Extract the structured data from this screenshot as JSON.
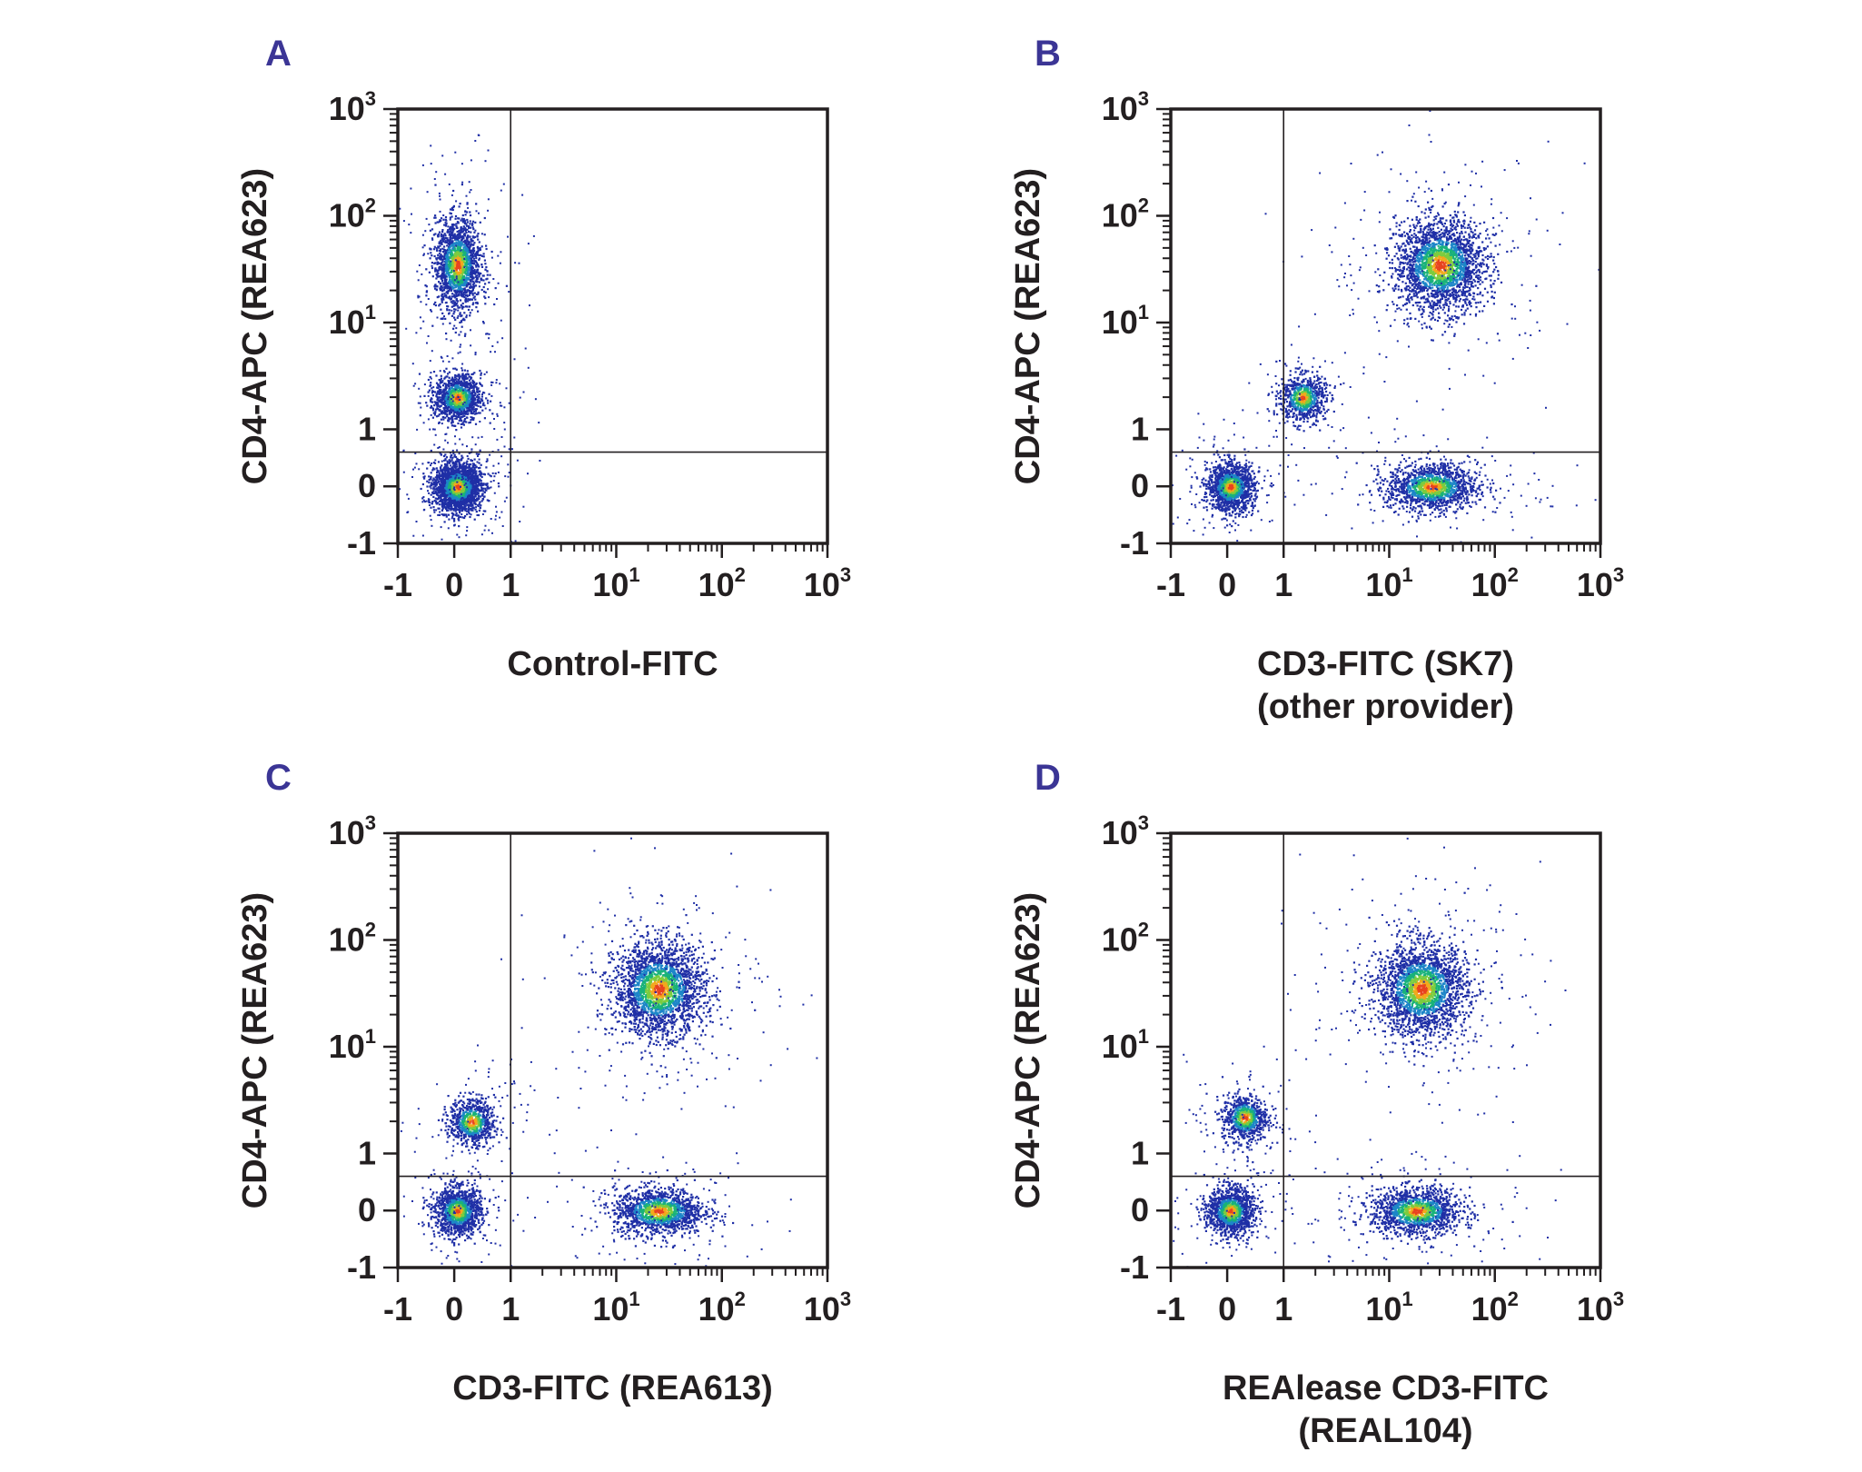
{
  "figure": {
    "background": "#ffffff",
    "panel_letter_color": "#3b3595",
    "point_color": "#1f2fa6",
    "density_colors": [
      "#1f2fa6",
      "#1d86c8",
      "#19b27a",
      "#7ccc3f",
      "#f2a81d",
      "#e8431f"
    ]
  },
  "chart_data": [
    {
      "type": "scatter",
      "panel": "A",
      "xlabel": [
        "Control-FITC"
      ],
      "ylabel": "CD4-APC (REA623)",
      "x_ticks": [
        {
          "base": "-1"
        },
        {
          "base": "0"
        },
        {
          "base": "1"
        },
        {
          "base": "10",
          "sup": "1"
        },
        {
          "base": "10",
          "sup": "2"
        },
        {
          "base": "10",
          "sup": "3"
        }
      ],
      "y_ticks": [
        {
          "base": "-1"
        },
        {
          "base": "0"
        },
        {
          "base": "1"
        },
        {
          "base": "10",
          "sup": "1"
        },
        {
          "base": "10",
          "sup": "2"
        },
        {
          "base": "10",
          "sup": "3"
        }
      ],
      "scale": "biexponential",
      "xlim": [
        -1,
        1000
      ],
      "ylim": [
        -1,
        1000
      ],
      "gate": {
        "x": 1,
        "y": 0.6
      },
      "populations": [
        {
          "x": 0.05,
          "y": 0.0,
          "count": 2200
        },
        {
          "x": 0.05,
          "y": 2,
          "count": 1100
        },
        {
          "x": 0.05,
          "y": 35,
          "count": 1600
        }
      ]
    },
    {
      "type": "scatter",
      "panel": "B",
      "xlabel": [
        "CD3-FITC (SK7)",
        "(other provider)"
      ],
      "ylabel": "CD4-APC (REA623)",
      "x_ticks": [
        {
          "base": "-1"
        },
        {
          "base": "0"
        },
        {
          "base": "1"
        },
        {
          "base": "10",
          "sup": "1"
        },
        {
          "base": "10",
          "sup": "2"
        },
        {
          "base": "10",
          "sup": "3"
        }
      ],
      "y_ticks": [
        {
          "base": "-1"
        },
        {
          "base": "0"
        },
        {
          "base": "1"
        },
        {
          "base": "10",
          "sup": "1"
        },
        {
          "base": "10",
          "sup": "2"
        },
        {
          "base": "10",
          "sup": "3"
        }
      ],
      "scale": "biexponential",
      "xlim": [
        -1,
        1000
      ],
      "ylim": [
        -1,
        1000
      ],
      "gate": {
        "x": 1,
        "y": 0.6
      },
      "populations": [
        {
          "x": 0.05,
          "y": 0.0,
          "count": 1300
        },
        {
          "x": 1.5,
          "y": 2,
          "count": 700
        },
        {
          "x": 25,
          "y": 0.0,
          "count": 1300
        },
        {
          "x": 30,
          "y": 35,
          "count": 2200
        }
      ]
    },
    {
      "type": "scatter",
      "panel": "C",
      "xlabel": [
        "CD3-FITC (REA613)"
      ],
      "ylabel": "CD4-APC (REA623)",
      "x_ticks": [
        {
          "base": "-1"
        },
        {
          "base": "0"
        },
        {
          "base": "1"
        },
        {
          "base": "10",
          "sup": "1"
        },
        {
          "base": "10",
          "sup": "2"
        },
        {
          "base": "10",
          "sup": "3"
        }
      ],
      "y_ticks": [
        {
          "base": "-1"
        },
        {
          "base": "0"
        },
        {
          "base": "1"
        },
        {
          "base": "10",
          "sup": "1"
        },
        {
          "base": "10",
          "sup": "2"
        },
        {
          "base": "10",
          "sup": "3"
        }
      ],
      "scale": "biexponential",
      "xlim": [
        -1,
        1000
      ],
      "ylim": [
        -1,
        1000
      ],
      "gate": {
        "x": 1,
        "y": 0.6
      },
      "populations": [
        {
          "x": 0.05,
          "y": 0.0,
          "count": 1200
        },
        {
          "x": 0.3,
          "y": 2,
          "count": 700
        },
        {
          "x": 25,
          "y": 0.0,
          "count": 1300
        },
        {
          "x": 25,
          "y": 35,
          "count": 2200
        }
      ]
    },
    {
      "type": "scatter",
      "panel": "D",
      "xlabel": [
        "REAlease CD3-FITC",
        "(REAL104)"
      ],
      "ylabel": "CD4-APC (REA623)",
      "x_ticks": [
        {
          "base": "-1"
        },
        {
          "base": "0"
        },
        {
          "base": "1"
        },
        {
          "base": "10",
          "sup": "1"
        },
        {
          "base": "10",
          "sup": "2"
        },
        {
          "base": "10",
          "sup": "3"
        }
      ],
      "y_ticks": [
        {
          "base": "-1"
        },
        {
          "base": "0"
        },
        {
          "base": "1"
        },
        {
          "base": "10",
          "sup": "1"
        },
        {
          "base": "10",
          "sup": "2"
        },
        {
          "base": "10",
          "sup": "3"
        }
      ],
      "scale": "biexponential",
      "xlim": [
        -1,
        1000
      ],
      "ylim": [
        -1,
        1000
      ],
      "gate": {
        "x": 1,
        "y": 0.6
      },
      "populations": [
        {
          "x": 0.05,
          "y": 0.0,
          "count": 1200
        },
        {
          "x": 0.3,
          "y": 2.2,
          "count": 700
        },
        {
          "x": 18,
          "y": 0.0,
          "count": 1300
        },
        {
          "x": 20,
          "y": 35,
          "count": 2200
        }
      ]
    }
  ]
}
